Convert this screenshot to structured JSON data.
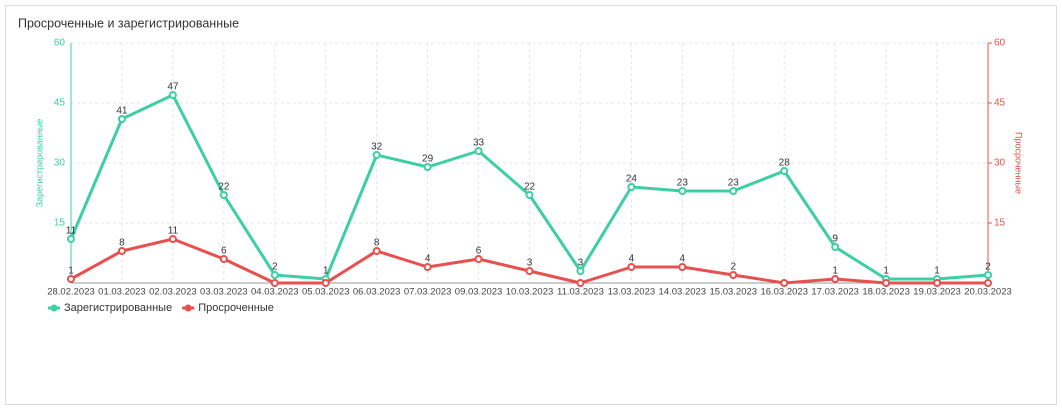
{
  "chart_data": {
    "type": "line",
    "title": "Просроченные и зарегистрированные",
    "ylabel": "Зарегистрированные",
    "y2label": "Просроченные",
    "categories": [
      "28.02.2023",
      "01.03.2023",
      "02.03.2023",
      "03.03.2023",
      "04.03.2023",
      "05.03.2023",
      "06.03.2023",
      "07.03.2023",
      "09.03.2023",
      "10.03.2023",
      "11.03.2023",
      "13.03.2023",
      "14.03.2023",
      "15.03.2023",
      "16.03.2023",
      "17.03.2023",
      "18.03.2023",
      "19.03.2023",
      "20.03.2023"
    ],
    "series": [
      {
        "name": "Зарегистрированные",
        "color": "#3ccfa4",
        "values": [
          11,
          41,
          47,
          22,
          2,
          1,
          32,
          29,
          33,
          22,
          3,
          24,
          23,
          23,
          28,
          9,
          1,
          1,
          2
        ]
      },
      {
        "name": "Просроченные",
        "color": "#e8504f",
        "axis": "y2",
        "values": [
          1,
          8,
          11,
          6,
          0,
          0,
          8,
          4,
          6,
          3,
          0,
          4,
          4,
          2,
          0,
          1,
          0,
          0,
          0
        ]
      }
    ],
    "ylim": [
      0,
      60
    ],
    "yticks": [
      15,
      30,
      45,
      60
    ],
    "y2lim": [
      0,
      60
    ],
    "y2ticks": [
      15,
      30,
      45,
      60
    ],
    "grid": true,
    "legend": "bottom-left"
  }
}
